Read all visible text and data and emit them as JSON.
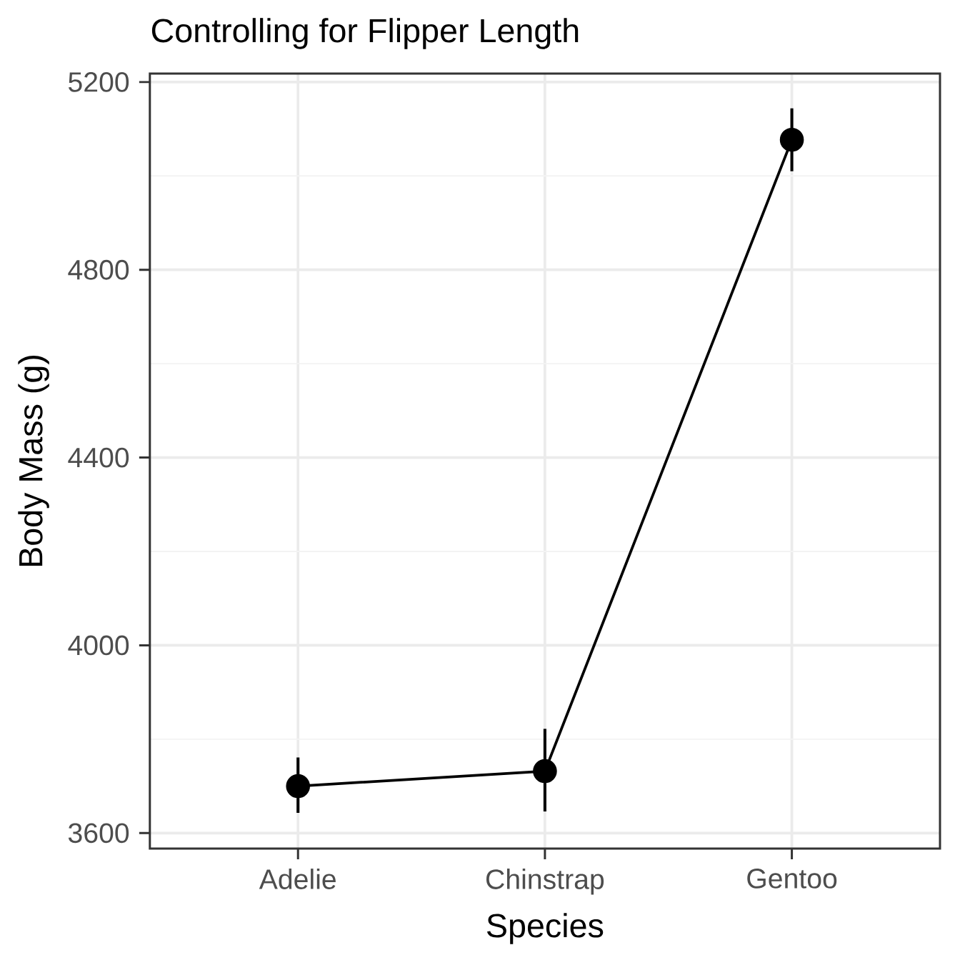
{
  "chart_data": {
    "type": "line",
    "title": "Controlling for Flipper Length",
    "xlabel": "Species",
    "ylabel": "Body Mass (g)",
    "categories": [
      "Adelie",
      "Chinstrap",
      "Gentoo"
    ],
    "values": [
      3700,
      3732,
      5077
    ],
    "errors": [
      [
        3643,
        3761
      ],
      [
        3646,
        3822
      ],
      [
        5010,
        5144
      ]
    ],
    "color": "#000000",
    "marker": "circle",
    "line_style": "solid",
    "grid": true,
    "ylim": [
      3567,
      5218
    ],
    "yticks": [
      3600,
      4000,
      4400,
      4800,
      5200
    ]
  }
}
